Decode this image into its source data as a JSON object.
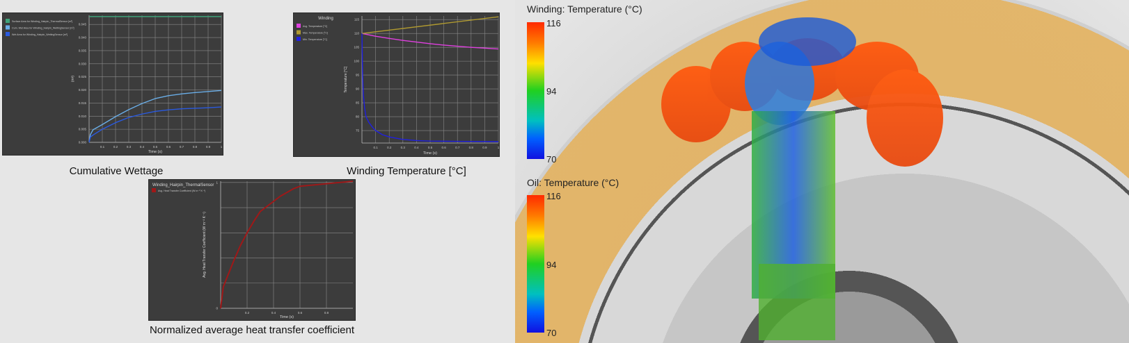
{
  "charts": {
    "chart_data": [
      {
        "type": "line",
        "caption": "Cumulative Wettage",
        "title": "",
        "xlabel": "Time (s)",
        "ylabel": "(m²)",
        "xlim": [
          0,
          1
        ],
        "ylim": [
          0,
          0.0485
        ],
        "xticks": [
          0.1,
          0.2,
          0.3,
          0.4,
          0.5,
          0.6,
          0.7,
          0.8,
          0.9,
          1
        ],
        "xtick_labels": [
          "0.1",
          "0.2",
          "0.3",
          "0.4",
          "0.5",
          "0.6",
          "0.7",
          "0.8",
          "0.9",
          "1"
        ],
        "yticks": [
          0,
          0.005,
          0.01,
          0.015,
          0.02,
          0.025,
          0.03,
          0.035,
          0.04,
          0.045
        ],
        "ytick_labels": [
          "0.000",
          "0.005",
          "0.010",
          "0.015",
          "0.020",
          "0.025",
          "0.030",
          "0.035",
          "0.040",
          "0.045"
        ],
        "grid": true,
        "legend": "top-left",
        "series": [
          {
            "name": "Surface Area for Winding_Hairpin_ThermalSensor [m²]",
            "color": "#3fa37a",
            "x": [
              0,
              1
            ],
            "y": [
              0.048,
              0.048
            ]
          },
          {
            "name": "Cum. Wet Area for Winding_Hairpin_WettingSensor [m²]",
            "color": "#6aaee8",
            "x": [
              0,
              0.01,
              0.03,
              0.1,
              0.2,
              0.3,
              0.4,
              0.5,
              0.6,
              0.7,
              0.8,
              0.9,
              1
            ],
            "y": [
              0,
              0.003,
              0.0048,
              0.0068,
              0.0098,
              0.0125,
              0.0148,
              0.0167,
              0.0178,
              0.0185,
              0.019,
              0.0194,
              0.0198
            ]
          },
          {
            "name": "Wet Area for Winding_Hairpin_WettingSensor [m²]",
            "color": "#2a5ae0",
            "x": [
              0,
              0.01,
              0.03,
              0.1,
              0.2,
              0.3,
              0.4,
              0.5,
              0.6,
              0.7,
              0.8,
              0.9,
              1
            ],
            "y": [
              0,
              0.002,
              0.0028,
              0.005,
              0.0075,
              0.0095,
              0.0108,
              0.0118,
              0.0124,
              0.0128,
              0.013,
              0.0132,
              0.0135
            ]
          }
        ]
      },
      {
        "type": "line",
        "caption": "Winding Temperature [°C]",
        "title": "Winding",
        "xlabel": "Time (s)",
        "ylabel": "Temperature [°C]",
        "xlim": [
          0,
          1
        ],
        "ylim": [
          70.5,
          116.3
        ],
        "xticks": [
          0.1,
          0.2,
          0.3,
          0.4,
          0.5,
          0.6,
          0.7,
          0.8,
          0.9,
          1
        ],
        "xtick_labels": [
          "0.1",
          "0.2",
          "0.3",
          "0.4",
          "0.5",
          "0.6",
          "0.7",
          "0.8",
          "0.9",
          "1"
        ],
        "yticks": [
          75,
          80,
          85,
          90,
          95,
          100,
          105,
          110,
          115
        ],
        "ytick_labels": [
          "75",
          "80",
          "85",
          "90",
          "95",
          "100",
          "105",
          "110",
          "115"
        ],
        "grid": true,
        "legend": "top-left",
        "series": [
          {
            "name": "Avg. Temperature [°C]",
            "color": "#e040e0",
            "x": [
              0,
              0.1,
              0.2,
              0.3,
              0.4,
              0.5,
              0.6,
              0.7,
              0.8,
              0.9,
              1
            ],
            "y": [
              110,
              109,
              108.2,
              107.5,
              106.9,
              106.3,
              105.8,
              105.4,
              105,
              104.7,
              104.4
            ]
          },
          {
            "name": "Max. Temperature [°C]",
            "color": "#b09a30",
            "x": [
              0,
              1
            ],
            "y": [
              110,
              116
            ]
          },
          {
            "name": "Min. Temperature [°C]",
            "color": "#2020e0",
            "x": [
              0,
              0.005,
              0.01,
              0.02,
              0.03,
              0.05,
              0.08,
              0.1,
              0.15,
              0.2,
              0.3,
              0.4,
              0.5,
              0.7,
              1
            ],
            "y": [
              110,
              95,
              88,
              83,
              80,
              78,
              76,
              75,
              73.5,
              72.7,
              71.8,
              71.4,
              71.2,
              71.1,
              71
            ]
          }
        ]
      },
      {
        "type": "line",
        "caption": "Normalized average heat transfer coefficient",
        "title": "Winding_Hairpin_ThermalSensor",
        "xlabel": "Time (s)",
        "ylabel": "Avg. Heat Transfer Coefficient (W m⁻² K⁻¹)",
        "xlim": [
          0,
          1
        ],
        "ylim": [
          0,
          1.01
        ],
        "xticks": [
          0.2,
          0.4,
          0.6,
          0.8
        ],
        "xtick_labels": [
          "0.2",
          "0.4",
          "0.6",
          "0.8"
        ],
        "yticks": [
          0,
          0.2,
          0.4,
          0.6,
          0.8,
          1
        ],
        "ytick_labels": [
          "0",
          "",
          "",
          "",
          "",
          "1"
        ],
        "grid": true,
        "legend": "top-left",
        "series": [
          {
            "name": "Avg. Heat Transfer Coefficient (W m⁻² K⁻¹)",
            "color": "#a01818",
            "x": [
              0,
              0.02,
              0.05,
              0.1,
              0.15,
              0.2,
              0.25,
              0.3,
              0.35,
              0.4,
              0.45,
              0.5,
              0.55,
              0.6,
              0.7,
              0.8,
              0.9,
              1
            ],
            "y": [
              0,
              0.17,
              0.25,
              0.38,
              0.5,
              0.6,
              0.69,
              0.77,
              0.81,
              0.85,
              0.89,
              0.92,
              0.95,
              0.97,
              0.98,
              0.99,
              1.0,
              1.01
            ]
          }
        ]
      }
    ]
  },
  "render": {
    "winding_colorbar": {
      "title": "Winding: Temperature (°C)",
      "max": "116",
      "mid": "94",
      "min": "70"
    },
    "oil_colorbar": {
      "title": "Oil: Temperature (°C)",
      "max": "116",
      "mid": "94",
      "min": "70"
    }
  }
}
